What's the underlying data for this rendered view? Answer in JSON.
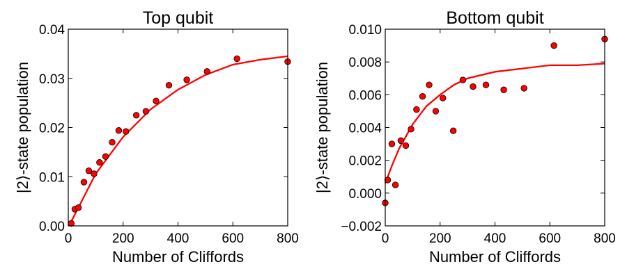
{
  "chart_data": [
    {
      "type": "scatter",
      "title": "Top qubit",
      "xlabel": "Number of Cliffords",
      "ylabel": "|2⟩-state population",
      "xlim": [
        0,
        800
      ],
      "ylim": [
        0,
        0.04
      ],
      "xticks": [
        0,
        200,
        400,
        600,
        800
      ],
      "xtick_labels": [
        "0",
        "200",
        "400",
        "600",
        "800"
      ],
      "yticks": [
        0,
        0.01,
        0.02,
        0.03,
        0.04
      ],
      "ytick_labels": [
        "0.00",
        "0.01",
        "0.02",
        "0.03",
        "0.04"
      ],
      "grid": false,
      "legend": "none",
      "series": [
        {
          "kind": "points",
          "color": "#ff0000",
          "x": [
            11,
            24,
            37,
            57,
            75,
            94,
            114,
            136,
            160,
            184,
            210,
            248,
            283,
            320,
            367,
            432,
            506,
            615,
            800
          ],
          "y": [
            0.0005,
            0.0034,
            0.0037,
            0.0089,
            0.0112,
            0.0106,
            0.0129,
            0.0141,
            0.017,
            0.0194,
            0.0192,
            0.0225,
            0.0233,
            0.0254,
            0.0286,
            0.0297,
            0.0314,
            0.034,
            0.0334
          ]
        },
        {
          "kind": "line",
          "color": "#ff0000",
          "x": [
            10,
            100,
            200,
            300,
            400,
            500,
            600,
            700,
            800
          ],
          "y": [
            0.0008,
            0.0106,
            0.0181,
            0.0237,
            0.0277,
            0.0307,
            0.0328,
            0.0338,
            0.0345
          ]
        }
      ]
    },
    {
      "type": "scatter",
      "title": "Bottom qubit",
      "xlabel": "Number of Cliffords",
      "ylabel": "|2⟩-state population",
      "xlim": [
        0,
        800
      ],
      "ylim": [
        -0.002,
        0.01
      ],
      "xticks": [
        0,
        200,
        400,
        600,
        800
      ],
      "xtick_labels": [
        "0",
        "200",
        "400",
        "600",
        "800"
      ],
      "yticks": [
        -0.002,
        0,
        0.002,
        0.004,
        0.006,
        0.008,
        0.01
      ],
      "ytick_labels": [
        "−0.002",
        "0.000",
        "0.002",
        "0.004",
        "0.006",
        "0.008",
        "0.010"
      ],
      "grid": false,
      "legend": "none",
      "series": [
        {
          "kind": "points",
          "color": "#ff0000",
          "x": [
            0,
            9,
            24,
            37,
            57,
            75,
            94,
            114,
            136,
            160,
            184,
            210,
            248,
            283,
            320,
            367,
            432,
            506,
            615,
            800
          ],
          "y": [
            -0.0006,
            0.0008,
            0.003,
            0.0005,
            0.0032,
            0.0029,
            0.0039,
            0.0051,
            0.0059,
            0.0066,
            0.005,
            0.0058,
            0.0038,
            0.0069,
            0.0065,
            0.0066,
            0.0063,
            0.0064,
            0.009,
            0.0094
          ]
        },
        {
          "kind": "line",
          "color": "#ff0000",
          "x": [
            0,
            25,
            50,
            100,
            150,
            200,
            250,
            300,
            400,
            500,
            600,
            700,
            800
          ],
          "y": [
            0.0006,
            0.0017,
            0.0027,
            0.0042,
            0.0053,
            0.006,
            0.0066,
            0.007,
            0.0074,
            0.0076,
            0.0078,
            0.0078,
            0.0079
          ]
        }
      ]
    }
  ]
}
